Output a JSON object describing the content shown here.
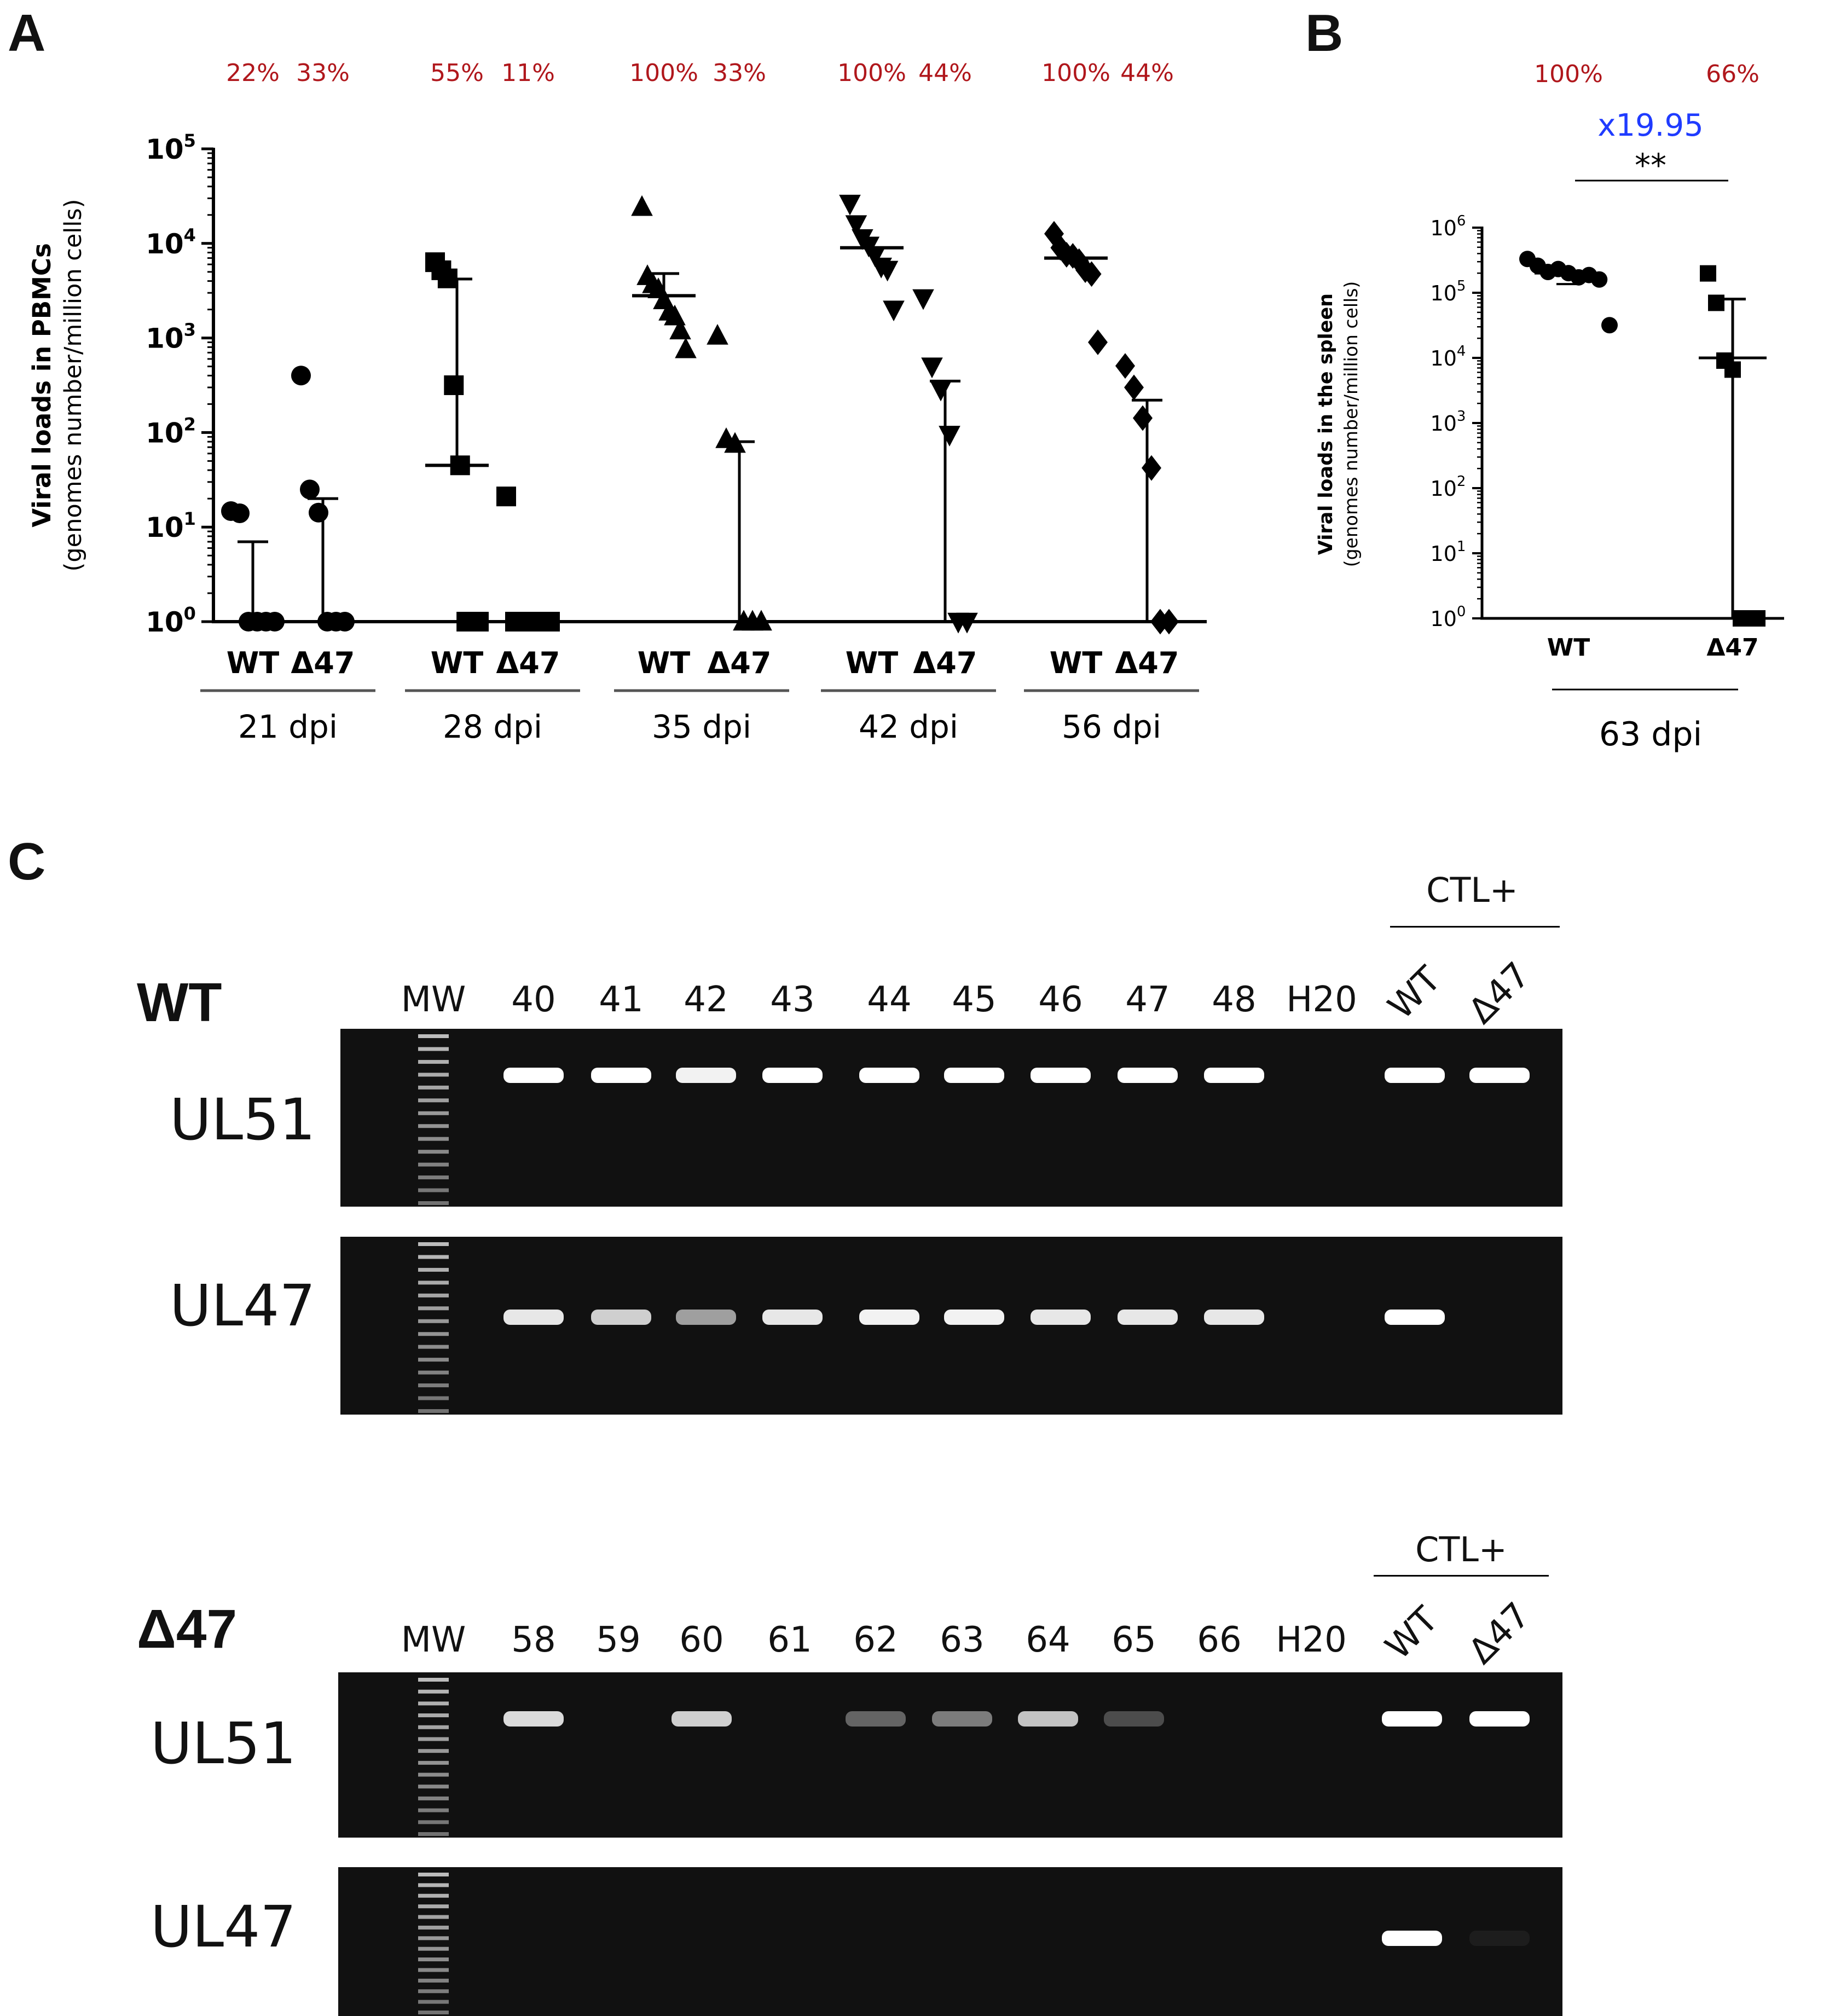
{
  "panels": {
    "a_letter": "A",
    "b_letter": "B",
    "c_letter": "C"
  },
  "chart_data": [
    {
      "type": "scatter",
      "panel": "A",
      "ylabel_main": "Viral loads in PBMCs",
      "ylabel_sub": "(genomes number/million cells)",
      "yscale": "log",
      "ylim": [
        1,
        100000
      ],
      "yticks": [
        {
          "value": 1,
          "base": "10",
          "exp": "0"
        },
        {
          "value": 10,
          "base": "10",
          "exp": "1"
        },
        {
          "value": 100,
          "base": "10",
          "exp": "2"
        },
        {
          "value": 1000,
          "base": "10",
          "exp": "3"
        },
        {
          "value": 10000,
          "base": "10",
          "exp": "4"
        },
        {
          "value": 100000,
          "base": "10",
          "exp": "5"
        }
      ],
      "groups": [
        {
          "timepoint": "21 dpi",
          "marker": "circle",
          "series": [
            {
              "label": "WT",
              "pct": "22%",
              "median": 1,
              "whisker": 7,
              "points": [
                14,
                14,
                1,
                1,
                1,
                1
              ]
            },
            {
              "label": "Δ47",
              "pct": "33%",
              "median": 1,
              "whisker": 20,
              "points": [
                380,
                25,
                15,
                1,
                1,
                1
              ]
            }
          ]
        },
        {
          "timepoint": "28 dpi",
          "marker": "square",
          "series": [
            {
              "label": "WT",
              "pct": "55%",
              "median": 45,
              "whisker": 4200,
              "points": [
                6000,
                5200,
                4500,
                300,
                45,
                1,
                1,
                1
              ]
            },
            {
              "label": "Δ47",
              "pct": "11%",
              "median": 1,
              "whisker": null,
              "points": [
                20,
                1,
                1,
                1,
                1,
                1
              ]
            }
          ]
        },
        {
          "timepoint": "35 dpi",
          "marker": "triangle-up",
          "series": [
            {
              "label": "WT",
              "pct": "100%",
              "median": 2800,
              "whisker": 4800,
              "points": [
                23000,
                4500,
                3900,
                3100,
                2500,
                2000,
                1600,
                1200,
                800
              ]
            },
            {
              "label": "Δ47",
              "pct": "33%",
              "median": 1,
              "whisker": 80,
              "points": [
                1000,
                85,
                80,
                1,
                1,
                1
              ]
            }
          ]
        },
        {
          "timepoint": "42 dpi",
          "marker": "triangle-down",
          "series": [
            {
              "label": "WT",
              "pct": "100%",
              "median": 9000,
              "whisker": null,
              "points": [
                25000,
                16000,
                12000,
                9000,
                7500,
                6000,
                5000,
                2000
              ]
            },
            {
              "label": "Δ47",
              "pct": "44%",
              "median": 1,
              "whisker": 350,
              "points": [
                2500,
                500,
                300,
                90,
                1,
                1
              ]
            }
          ]
        },
        {
          "timepoint": "56 dpi",
          "marker": "diamond",
          "series": [
            {
              "label": "WT",
              "pct": "100%",
              "median": 7000,
              "whisker": null,
              "points": [
                12000,
                9000,
                8000,
                7000,
                6500,
                5500,
                4500,
                900
              ]
            },
            {
              "label": "Δ47",
              "pct": "44%",
              "median": 1,
              "whisker": 220,
              "points": [
                480,
                300,
                150,
                40,
                1,
                1
              ]
            }
          ]
        }
      ]
    },
    {
      "type": "scatter",
      "panel": "B",
      "ylabel_main": "Viral loads in the spleen",
      "ylabel_sub": "(genomes number/million cells)",
      "yscale": "log",
      "ylim": [
        1,
        1000000
      ],
      "yticks": [
        {
          "value": 1,
          "base": "10",
          "exp": "0"
        },
        {
          "value": 10,
          "base": "10",
          "exp": "1"
        },
        {
          "value": 100,
          "base": "10",
          "exp": "2"
        },
        {
          "value": 1000,
          "base": "10",
          "exp": "3"
        },
        {
          "value": 10000,
          "base": "10",
          "exp": "4"
        },
        {
          "value": 100000,
          "base": "10",
          "exp": "5"
        },
        {
          "value": 1000000,
          "base": "10",
          "exp": "6"
        }
      ],
      "timepoint": "63 dpi",
      "fold_change": "x19.95",
      "significance": "**",
      "series": [
        {
          "label": "WT",
          "pct": "100%",
          "marker": "circle",
          "median": 200000,
          "points": [
            300000,
            260000,
            230000,
            210000,
            200000,
            190000,
            170000,
            160000,
            35000
          ]
        },
        {
          "label": "Δ47",
          "pct": "66%",
          "marker": "square",
          "median": 10000,
          "whisker": 80000,
          "points": [
            180000,
            70000,
            10000,
            6000,
            1,
            1,
            1
          ]
        }
      ]
    }
  ],
  "gels": [
    {
      "title": "WT",
      "ctl_label": "CTL+",
      "lanes": [
        "MW",
        "40",
        "41",
        "42",
        "43",
        "44",
        "45",
        "46",
        "47",
        "48",
        "H20",
        "WT",
        "Δ47"
      ],
      "rows": [
        {
          "gene": "UL51",
          "intensity": [
            0,
            1,
            1,
            0.95,
            1,
            1,
            1,
            1,
            1,
            1,
            0,
            1,
            1
          ]
        },
        {
          "gene": "UL47",
          "intensity": [
            0,
            0.9,
            0.8,
            0.6,
            0.9,
            0.95,
            0.95,
            0.9,
            0.9,
            0.9,
            0,
            1,
            0
          ]
        }
      ]
    },
    {
      "title": "Δ47",
      "ctl_label": "CTL+",
      "lanes": [
        "MW",
        "58",
        "59",
        "60",
        "61",
        "62",
        "63",
        "64",
        "65",
        "66",
        "H20",
        "WT",
        "Δ47"
      ],
      "rows": [
        {
          "gene": "UL51",
          "intensity": [
            0,
            0.85,
            0,
            0.8,
            0,
            0.35,
            0.45,
            0.75,
            0.25,
            0,
            0,
            1,
            1
          ]
        },
        {
          "gene": "UL47",
          "intensity": [
            0,
            0,
            0,
            0,
            0,
            0,
            0,
            0,
            0,
            0,
            0,
            1,
            0.05
          ]
        }
      ]
    }
  ]
}
